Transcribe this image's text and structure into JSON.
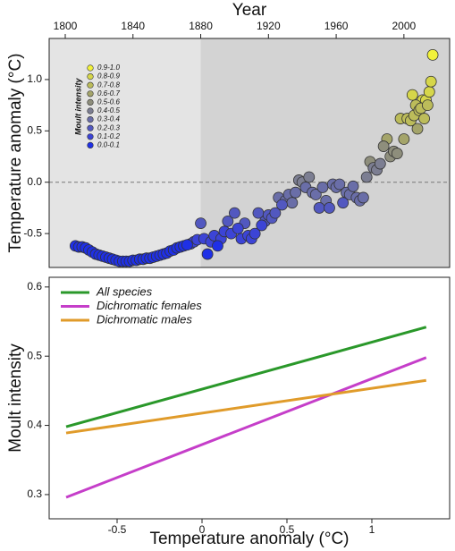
{
  "chart_data": [
    {
      "type": "scatter",
      "title": "Year",
      "y_label": "Temperature anomaly (°C)",
      "legend_title": "Moult intensity",
      "legend": "upper left",
      "xlim": [
        1790.5,
        2027
      ],
      "xticks": [
        1800,
        1840,
        1880,
        1920,
        1960,
        2000
      ],
      "ylim": [
        -0.83,
        1.4
      ],
      "yticks": [
        -0.5,
        {
          "value": 0,
          "label": "0.0"
        },
        0.5,
        {
          "value": 1,
          "label": "1.0"
        }
      ],
      "reference_line": 0,
      "background_split": 1880,
      "series": [
        {
          "name": "0.9-1.0",
          "color": "#f2f23a",
          "x": [
            2017
          ],
          "values": [
            1.24
          ]
        },
        {
          "name": "0.8-0.9",
          "color": "#d6d64a",
          "x": [
            2005,
            2011,
            2013,
            2015,
            2016
          ],
          "values": [
            0.85,
            0.8,
            0.8,
            0.88,
            0.98
          ]
        },
        {
          "name": "0.7-0.8",
          "color": "#bcbc5a",
          "x": [
            1998,
            2002,
            2004,
            2006,
            2007,
            2009,
            2010,
            2012,
            2014
          ],
          "values": [
            0.62,
            0.62,
            0.6,
            0.65,
            0.75,
            0.7,
            0.72,
            0.62,
            0.75
          ]
        },
        {
          "name": "0.6-0.7",
          "color": "#a4a46a",
          "x": [
            1990,
            2000,
            2008
          ],
          "values": [
            0.42,
            0.42,
            0.52
          ]
        },
        {
          "name": "0.5-0.6",
          "color": "#8e8e7c",
          "x": [
            1980,
            1988,
            1992,
            1994,
            1996
          ],
          "values": [
            0.2,
            0.35,
            0.25,
            0.3,
            0.28
          ]
        },
        {
          "name": "0.4-0.5",
          "color": "#7c7e92",
          "x": [
            1938,
            1940,
            1944,
            1978,
            1982,
            1984,
            1986
          ],
          "values": [
            0.02,
            0.0,
            0.05,
            0.05,
            0.14,
            0.12,
            0.18
          ]
        },
        {
          "name": "0.3-0.4",
          "color": "#6a6ea8",
          "x": [
            1926,
            1930,
            1932,
            1934,
            1936,
            1942,
            1946,
            1948,
            1952,
            1954,
            1958,
            1960,
            1962,
            1966,
            1968,
            1970,
            1972,
            1974,
            1976
          ],
          "values": [
            -0.15,
            -0.18,
            -0.12,
            -0.2,
            -0.1,
            -0.05,
            -0.1,
            -0.12,
            -0.05,
            -0.18,
            -0.02,
            -0.05,
            -0.02,
            -0.1,
            -0.12,
            -0.04,
            -0.15,
            -0.18,
            -0.15
          ]
        },
        {
          "name": "0.2-0.3",
          "color": "#5258c0",
          "x": [
            1880,
            1896,
            1900,
            1906,
            1914,
            1918,
            1920,
            1922,
            1924,
            1928,
            1950,
            1956,
            1964
          ],
          "values": [
            -0.4,
            -0.38,
            -0.3,
            -0.4,
            -0.3,
            -0.38,
            -0.32,
            -0.35,
            -0.3,
            -0.22,
            -0.25,
            -0.25,
            -0.2
          ]
        },
        {
          "name": "0.1-0.2",
          "color": "#3c44d6",
          "x": [
            1874,
            1876,
            1878,
            1882,
            1886,
            1888,
            1892,
            1894,
            1898,
            1902,
            1904,
            1908,
            1910,
            1912,
            1916
          ],
          "values": [
            -0.6,
            -0.58,
            -0.56,
            -0.55,
            -0.58,
            -0.52,
            -0.55,
            -0.48,
            -0.5,
            -0.45,
            -0.55,
            -0.52,
            -0.55,
            -0.5,
            -0.42
          ]
        },
        {
          "name": "0.0-0.1",
          "color": "#1f30e6",
          "x": [
            1806,
            1808,
            1810,
            1812,
            1814,
            1816,
            1818,
            1820,
            1822,
            1824,
            1826,
            1828,
            1830,
            1832,
            1834,
            1836,
            1838,
            1840,
            1842,
            1844,
            1846,
            1848,
            1850,
            1852,
            1854,
            1856,
            1858,
            1860,
            1862,
            1864,
            1866,
            1868,
            1870,
            1872,
            1884,
            1890
          ],
          "values": [
            -0.62,
            -0.63,
            -0.63,
            -0.64,
            -0.66,
            -0.68,
            -0.7,
            -0.71,
            -0.72,
            -0.73,
            -0.74,
            -0.75,
            -0.76,
            -0.77,
            -0.77,
            -0.77,
            -0.77,
            -0.76,
            -0.76,
            -0.75,
            -0.75,
            -0.74,
            -0.74,
            -0.73,
            -0.72,
            -0.71,
            -0.7,
            -0.69,
            -0.67,
            -0.66,
            -0.64,
            -0.63,
            -0.62,
            -0.61,
            -0.7,
            -0.62
          ]
        }
      ]
    },
    {
      "type": "line",
      "x_label": "Temperature anomaly (°C)",
      "y_label": "Moult intensity",
      "legend": "upper left",
      "xlim": [
        -0.9,
        1.458
      ],
      "xticks": [
        -0.5,
        0,
        0.5,
        1
      ],
      "ylim": [
        0.265,
        0.614
      ],
      "yticks": [
        0.3,
        0.4,
        0.5,
        0.6
      ],
      "series": [
        {
          "name": "All species",
          "color": "#2a982a",
          "x": [
            -0.8,
            1.32
          ],
          "values": [
            0.398,
            0.542
          ]
        },
        {
          "name": "Dichromatic females",
          "color": "#c53ec9",
          "x": [
            -0.8,
            1.32
          ],
          "values": [
            0.296,
            0.498
          ]
        },
        {
          "name": "Dichromatic males",
          "color": "#e09b2a",
          "x": [
            -0.8,
            1.32
          ],
          "values": [
            0.389,
            0.465
          ]
        }
      ]
    }
  ]
}
